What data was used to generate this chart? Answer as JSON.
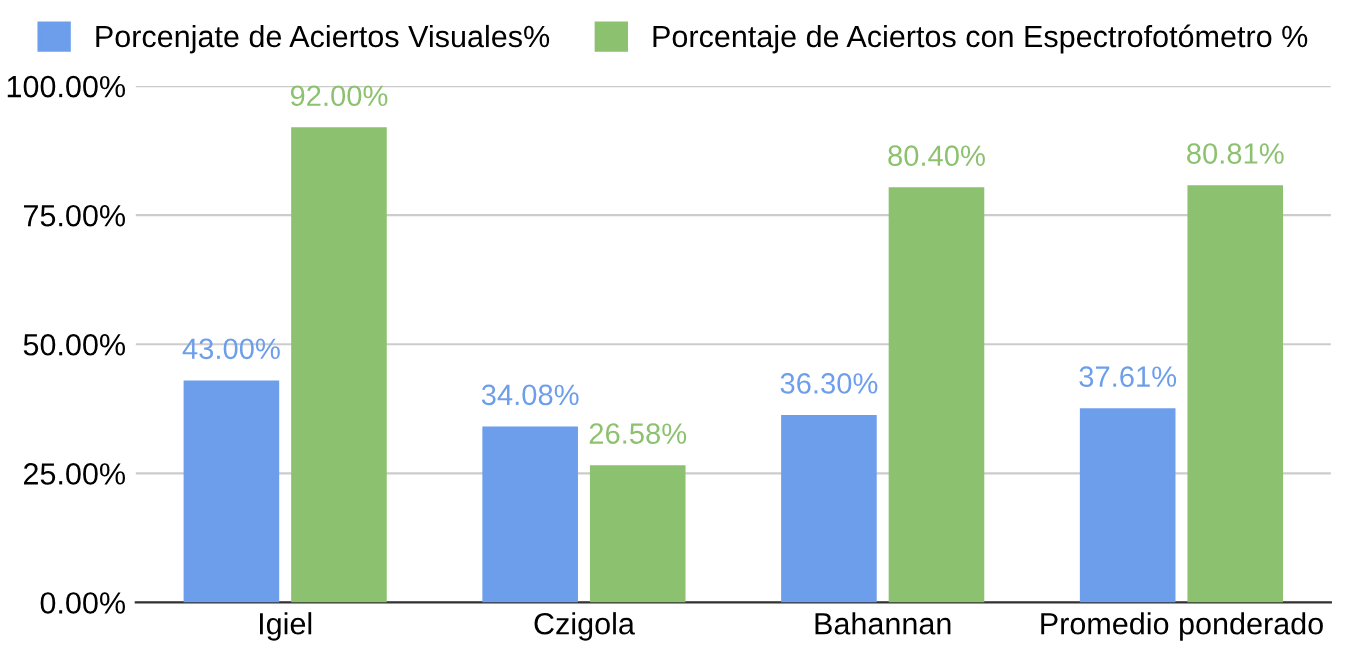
{
  "chart_data": {
    "type": "bar",
    "categories": [
      "Igiel",
      "Czigola",
      "Bahannan",
      "Promedio ponderado"
    ],
    "series": [
      {
        "name": "Porcenjate de Aciertos Visuales%",
        "color": "#6d9eeb",
        "values": [
          43.0,
          34.08,
          36.3,
          37.61
        ],
        "value_labels": [
          "43.00%",
          "34.08%",
          "36.30%",
          "37.61%"
        ]
      },
      {
        "name": "Porcentaje de Aciertos con Espectrofotómetro %",
        "color": "#8cc16f",
        "values": [
          92.0,
          26.58,
          80.4,
          80.81
        ],
        "value_labels": [
          "92.00%",
          "26.58%",
          "80.40%",
          "80.81%"
        ]
      }
    ],
    "ylim": [
      0,
      100
    ],
    "yticks": [
      {
        "value": 0,
        "label": "0.00%"
      },
      {
        "value": 25,
        "label": "25.00%"
      },
      {
        "value": 50,
        "label": "50.00%"
      },
      {
        "value": 75,
        "label": "75.00%"
      },
      {
        "value": 100,
        "label": "100.00%"
      }
    ],
    "grid": "y",
    "legend": "top"
  }
}
